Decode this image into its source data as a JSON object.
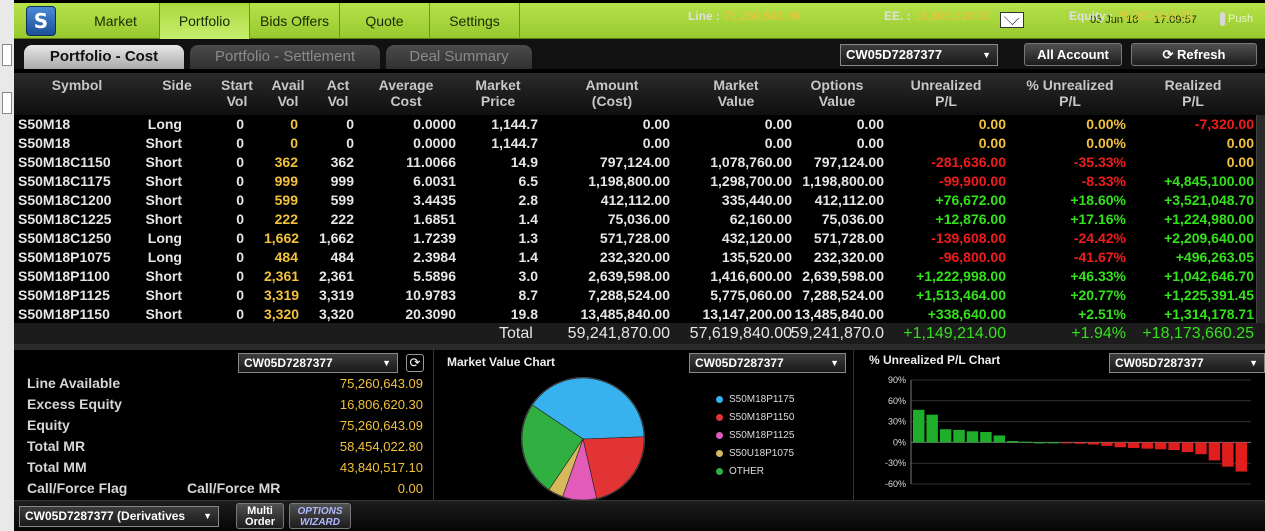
{
  "menu": {
    "items": [
      "Market",
      "Portfolio",
      "Bids Offers",
      "Quote",
      "Settings"
    ],
    "selected": "Portfolio"
  },
  "header": {
    "date": "05 Jun 18",
    "time": "17:09:57",
    "push_label": "Push"
  },
  "tabs": [
    {
      "label": "Portfolio - Cost",
      "selected": true
    },
    {
      "label": "Portfolio - Settlement",
      "selected": false
    },
    {
      "label": "Deal Summary",
      "selected": false
    }
  ],
  "account_select": "CW05D7287377",
  "all_account_label": "All Account",
  "refresh_label": "Refresh",
  "table": {
    "headers": [
      [
        "Symbol",
        ""
      ],
      [
        "Side",
        ""
      ],
      [
        "Start",
        "Vol"
      ],
      [
        "Avail",
        "Vol"
      ],
      [
        "Act",
        "Vol"
      ],
      [
        "Average",
        "Cost"
      ],
      [
        "Market",
        "Price"
      ],
      [
        "Amount",
        "(Cost)"
      ],
      [
        "Market",
        "Value"
      ],
      [
        "Options",
        "Value"
      ],
      [
        "Unrealized",
        "P/L"
      ],
      [
        "% Unrealized",
        "P/L"
      ],
      [
        "Realized",
        "P/L"
      ]
    ],
    "rows": [
      [
        "S50M18",
        "Long",
        "0",
        "0",
        "0",
        "0.0000",
        "1,144.7",
        "0.00",
        "0.00",
        "0.00",
        "0.00",
        "0.00%",
        "-7,320.00"
      ],
      [
        "S50M18",
        "Short",
        "0",
        "0",
        "0",
        "0.0000",
        "1,144.7",
        "0.00",
        "0.00",
        "0.00",
        "0.00",
        "0.00%",
        "0.00"
      ],
      [
        "S50M18C1150",
        "Short",
        "0",
        "362",
        "362",
        "11.0066",
        "14.9",
        "797,124.00",
        "1,078,760.00",
        "797,124.00",
        "-281,636.00",
        "-35.33%",
        "0.00"
      ],
      [
        "S50M18C1175",
        "Short",
        "0",
        "999",
        "999",
        "6.0031",
        "6.5",
        "1,198,800.00",
        "1,298,700.00",
        "1,198,800.00",
        "-99,900.00",
        "-8.33%",
        "+4,845,100.00"
      ],
      [
        "S50M18C1200",
        "Short",
        "0",
        "599",
        "599",
        "3.4435",
        "2.8",
        "412,112.00",
        "335,440.00",
        "412,112.00",
        "+76,672.00",
        "+18.60%",
        "+3,521,048.70"
      ],
      [
        "S50M18C1225",
        "Short",
        "0",
        "222",
        "222",
        "1.6851",
        "1.4",
        "75,036.00",
        "62,160.00",
        "75,036.00",
        "+12,876.00",
        "+17.16%",
        "+1,224,980.00"
      ],
      [
        "S50M18C1250",
        "Long",
        "0",
        "1,662",
        "1,662",
        "1.7239",
        "1.3",
        "571,728.00",
        "432,120.00",
        "571,728.00",
        "-139,608.00",
        "-24.42%",
        "+2,209,640.00"
      ],
      [
        "S50M18P1075",
        "Long",
        "0",
        "484",
        "484",
        "2.3984",
        "1.4",
        "232,320.00",
        "135,520.00",
        "232,320.00",
        "-96,800.00",
        "-41.67%",
        "+496,263.05"
      ],
      [
        "S50M18P1100",
        "Short",
        "0",
        "2,361",
        "2,361",
        "5.5896",
        "3.0",
        "2,639,598.00",
        "1,416,600.00",
        "2,639,598.00",
        "+1,222,998.00",
        "+46.33%",
        "+1,042,646.70"
      ],
      [
        "S50M18P1125",
        "Short",
        "0",
        "3,319",
        "3,319",
        "10.9783",
        "8.7",
        "7,288,524.00",
        "5,775,060.00",
        "7,288,524.00",
        "+1,513,464.00",
        "+20.77%",
        "+1,225,391.45"
      ],
      [
        "S50M18P1150",
        "Short",
        "0",
        "3,320",
        "3,320",
        "20.3090",
        "19.8",
        "13,485,840.00",
        "13,147,200.00",
        "13,485,840.00",
        "+338,640.00",
        "+2.51%",
        "+1,314,178.71"
      ]
    ],
    "total": {
      "label": "Total",
      "amount": "59,241,870.00",
      "market_value": "57,619,840.00",
      "options_value": "59,241,870.0",
      "unrealized": "+1,149,214.00",
      "pct_unrealized": "+1.94%",
      "realized": "+18,173,660.25"
    }
  },
  "account_panel": {
    "select": "CW05D7287377",
    "items": [
      {
        "label": "Line Available",
        "value": "75,260,643.09"
      },
      {
        "label": "Excess Equity",
        "value": "16,806,620.30"
      },
      {
        "label": "Equity",
        "value": "75,260,643.09"
      },
      {
        "label": "Total MR",
        "value": "58,454,022.80"
      },
      {
        "label": "Total MM",
        "value": "43,840,517.10"
      },
      {
        "label": "Call/Force Flag",
        "value": "0.00"
      }
    ],
    "callforce_mr_label": "Call/Force MR"
  },
  "mv_chart": {
    "title": "Market Value Chart",
    "select": "CW05D7287377",
    "colors": {
      "S50M18P1175": "#38b2ee",
      "S50M18P1150": "#e23434",
      "S50M18P1125": "#e25bb8",
      "S50U18P1075": "#d7b85a",
      "OTHER": "#2fb040"
    }
  },
  "pl_chart": {
    "title": "% Unrealized P/L Chart",
    "select": "CW05D7287377"
  },
  "chart_data": [
    {
      "type": "pie",
      "title": "Market Value Chart",
      "labels": [
        "S50M18P1175",
        "S50M18P1150",
        "S50M18P1125",
        "S50U18P1075",
        "OTHER"
      ],
      "values": [
        40,
        22,
        9,
        4,
        25
      ]
    },
    {
      "type": "bar",
      "title": "% Unrealized P/L Chart",
      "ytick_labels": [
        "90%",
        "60%",
        "30%",
        "0%",
        "-30%",
        "-60%"
      ],
      "ylim": [
        -60,
        90
      ],
      "values": [
        47,
        40,
        19,
        18,
        16,
        15,
        10,
        2,
        1,
        0,
        0,
        -1,
        -2,
        -3,
        -5,
        -7,
        -8,
        -9,
        -10,
        -11,
        -14,
        -17,
        -26,
        -35,
        -42
      ]
    }
  ],
  "status": {
    "account": "CW05D7287377 (Derivatives",
    "multi_order": "Multi Order",
    "options_wizard": "OPTIONS WIZARD",
    "line_label": "Line :",
    "line_value": "75,260,643.09",
    "ee_label": "EE. :",
    "ee_value": "16,806,620.30",
    "equity_label": "Equity :",
    "equity_value": "75,260,643.09"
  }
}
